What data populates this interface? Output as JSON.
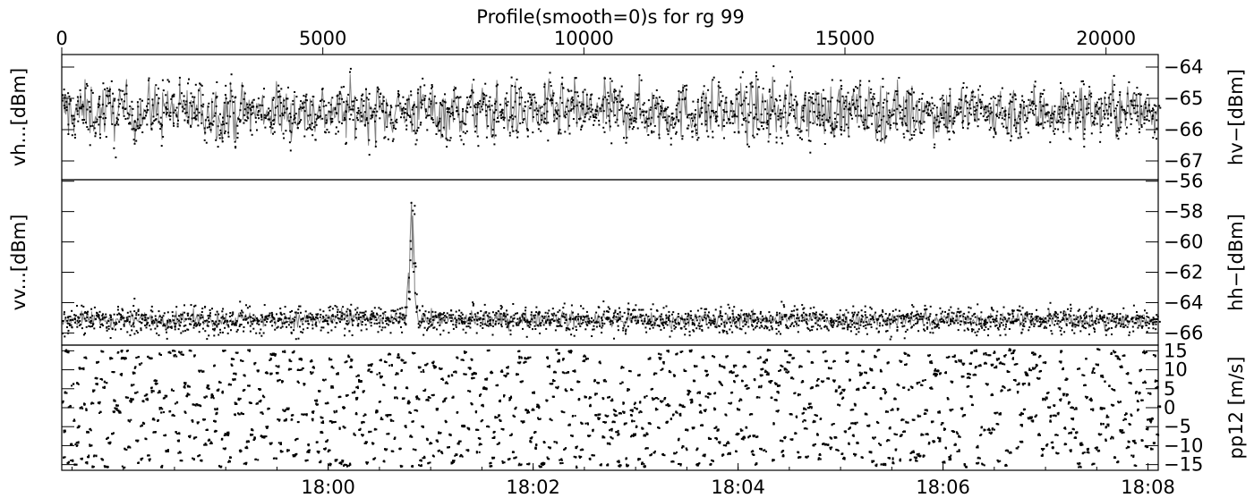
{
  "chart_data": {
    "type": "scatter",
    "title": "Profile(smooth=0)s for rg 99",
    "top_axis": {
      "range": [
        0,
        21000
      ],
      "ticks": [
        0,
        5000,
        10000,
        15000,
        20000
      ],
      "tick_labels": [
        "0",
        "5000",
        "10000",
        "15000",
        "20000"
      ]
    },
    "bottom_axis": {
      "range_minutes": [
        1077.4,
        1088.1
      ],
      "ticks_minutes": [
        1080,
        1082,
        1084,
        1086,
        1088
      ],
      "tick_labels": [
        "18:00",
        "18:02",
        "18:04",
        "18:06",
        "18:08"
      ]
    },
    "panels": [
      {
        "left_label": "vh...[dBm]",
        "right_label": "hv-[dBm]",
        "ylim": [
          -67.6,
          -63.6
        ],
        "yticks": [
          -64,
          -65,
          -66,
          -67
        ],
        "ytick_labels": [
          "-64",
          "-65",
          "-66",
          "-67"
        ],
        "series_pattern": {
          "center": -65.4,
          "spread": 0.8,
          "spike": null
        },
        "colors": {
          "line": "#808080",
          "points": "#000000"
        }
      },
      {
        "left_label": "vv...[dBm]",
        "right_label": "hh-[dBm]",
        "ylim": [
          -66.8,
          -55.9
        ],
        "yticks": [
          -56,
          -58,
          -60,
          -62,
          -64,
          -66
        ],
        "ytick_labels": [
          "-56",
          "-58",
          "-60",
          "-62",
          "-64",
          "-66"
        ],
        "series_pattern": {
          "center": -65.1,
          "spread": 0.45,
          "spike": {
            "x": 6700,
            "peak": -56.2
          }
        },
        "colors": {
          "line": "#808080",
          "points": "#000000"
        }
      },
      {
        "left_label": "",
        "right_label": "pp12 [m/s]",
        "ylim": [
          -16.5,
          16.5
        ],
        "yticks": [
          15,
          10,
          5,
          0,
          -5,
          -10,
          -15
        ],
        "ytick_labels": [
          "15",
          "10",
          "5",
          "0",
          "-5",
          "-10",
          "-15"
        ],
        "series_pattern": {
          "uniform": [
            -15.5,
            15.5
          ]
        },
        "colors": {
          "points": "#000000"
        }
      }
    ],
    "n_samples": 21000
  }
}
